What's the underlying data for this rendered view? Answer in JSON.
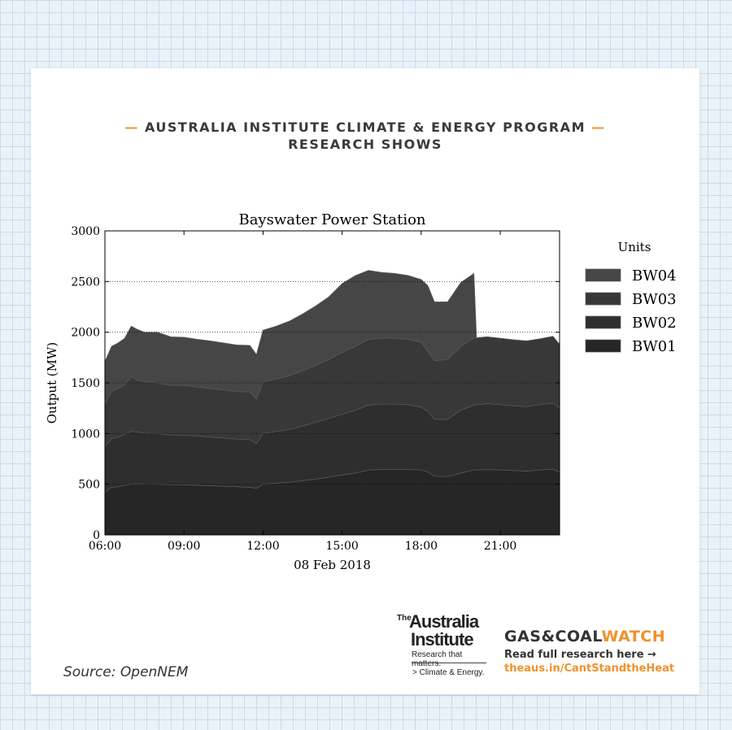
{
  "header": {
    "line1": "AUSTRALIA INSTITUTE CLIMATE & ENERGY PROGRAM",
    "line2": "RESEARCH SHOWS",
    "dash": "—"
  },
  "colors": {
    "accent": "#f0922b",
    "BW01": "#262626",
    "BW02": "#2e2e2e",
    "BW03": "#383838",
    "BW04": "#464646"
  },
  "chart_data": {
    "type": "area",
    "stacked": true,
    "title": "Bayswater Power Station",
    "xlabel": "08 Feb 2018",
    "ylabel": "Output (MW)",
    "xlim": [
      6,
      23.25
    ],
    "ylim": [
      0,
      3000
    ],
    "xticks": [
      6,
      9,
      12,
      15,
      18,
      21
    ],
    "xtick_labels": [
      "06:00",
      "09:00",
      "12:00",
      "15:00",
      "18:00",
      "21:00"
    ],
    "yticks": [
      0,
      500,
      1000,
      1500,
      2000,
      2500,
      3000
    ],
    "ytick_labels": [
      "0",
      "500",
      "1000",
      "1500",
      "2000",
      "2500",
      "3000"
    ],
    "grid": "horizontal dotted",
    "legend_title": "Units",
    "legend_position": "right",
    "x": [
      6.0,
      6.25,
      6.5,
      6.75,
      7.0,
      7.25,
      7.5,
      8.0,
      8.5,
      9.0,
      9.5,
      10.0,
      10.5,
      11.0,
      11.5,
      11.75,
      12.0,
      12.5,
      13.0,
      13.5,
      14.0,
      14.5,
      15.0,
      15.5,
      16.0,
      16.5,
      17.0,
      17.5,
      18.0,
      18.25,
      18.5,
      19.0,
      19.5,
      20.0,
      20.1,
      20.5,
      21.0,
      21.5,
      22.0,
      22.5,
      23.0,
      23.25
    ],
    "series": [
      {
        "name": "BW01",
        "values": [
          420,
          470,
          475,
          490,
          500,
          505,
          500,
          500,
          495,
          495,
          490,
          485,
          480,
          475,
          470,
          460,
          500,
          510,
          520,
          535,
          550,
          570,
          590,
          610,
          640,
          645,
          645,
          645,
          640,
          620,
          580,
          575,
          610,
          640,
          640,
          645,
          640,
          635,
          630,
          640,
          650,
          620
        ]
      },
      {
        "name": "BW02",
        "values": [
          450,
          480,
          490,
          500,
          520,
          510,
          505,
          500,
          490,
          490,
          485,
          480,
          475,
          470,
          470,
          440,
          500,
          510,
          520,
          540,
          560,
          580,
          600,
          620,
          640,
          645,
          645,
          640,
          620,
          600,
          560,
          565,
          620,
          640,
          645,
          650,
          645,
          640,
          635,
          645,
          650,
          630
        ]
      },
      {
        "name": "BW03",
        "values": [
          420,
          470,
          480,
          490,
          540,
          510,
          505,
          500,
          490,
          490,
          485,
          480,
          475,
          470,
          470,
          440,
          510,
          520,
          530,
          545,
          560,
          580,
          610,
          630,
          650,
          650,
          650,
          645,
          640,
          590,
          580,
          590,
          630,
          660,
          660,
          660,
          655,
          650,
          650,
          650,
          660,
          630
        ]
      },
      {
        "name": "BW04",
        "values": [
          420,
          440,
          450,
          460,
          500,
          500,
          490,
          500,
          480,
          475,
          470,
          470,
          465,
          460,
          460,
          440,
          510,
          520,
          540,
          560,
          590,
          620,
          680,
          700,
          680,
          650,
          640,
          630,
          620,
          650,
          580,
          570,
          630,
          640,
          0,
          0,
          0,
          0,
          0,
          0,
          0,
          0
        ]
      }
    ]
  },
  "footer": {
    "source": "Source: OpenNEM",
    "tai_the": "The",
    "tai_line1": "Australia",
    "tai_line2": "Institute",
    "tai_tagline": "Research that matters.",
    "tai_sub": "> Climate & Energy.",
    "gcw_brand_a": "GAS&COAL",
    "gcw_brand_b": "WATCH",
    "gcw_read": "Read full research here →",
    "gcw_url": "theaus.in/CantStandtheHeat"
  }
}
